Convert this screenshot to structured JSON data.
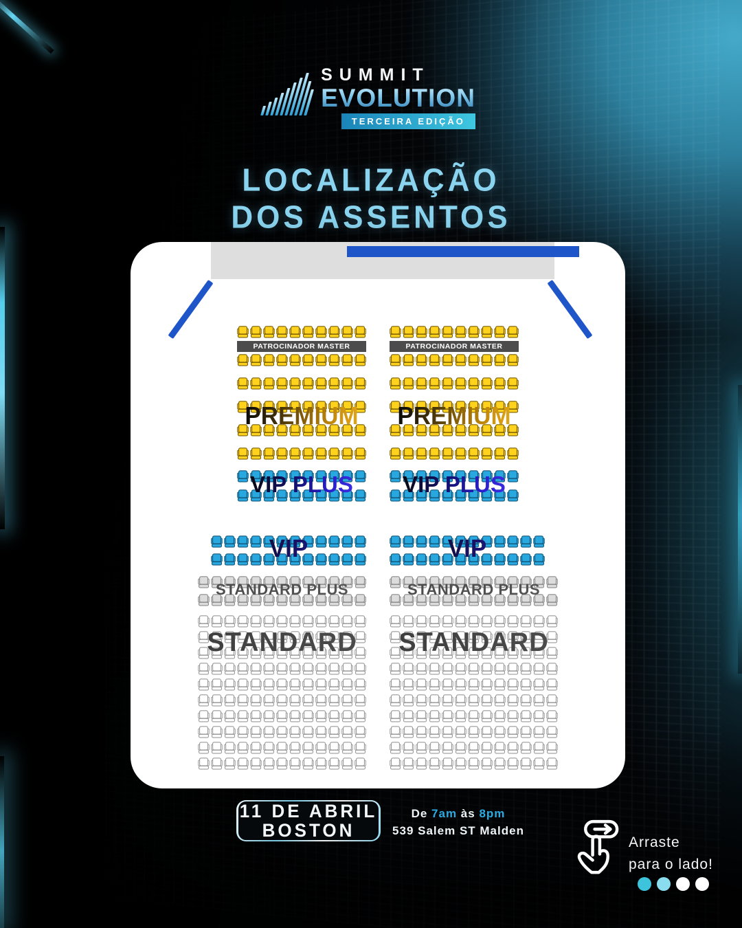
{
  "logo": {
    "summit": "SUMMIT",
    "evolution": "EVOLUTION",
    "badge": "TERCEIRA EDIÇÃO",
    "icon": "mountain-stripes-icon",
    "icon_bar_heights": [
      14,
      20,
      26,
      33,
      40,
      48,
      55,
      62,
      50,
      38
    ]
  },
  "title": {
    "line1": "LOCALIZAÇÃO",
    "line2": "DOS ASSENTOS"
  },
  "seat_map": {
    "banner": "PATROCINADOR MASTER",
    "labels": {
      "premium": "PREMIUM",
      "vip_plus": "VIP PLUS",
      "vip": "VIP",
      "standard_plus": "STANDARD PLUS",
      "standard": "STANDARD"
    },
    "seat_colors": {
      "yellow": {
        "fill": "#FFD21E",
        "stroke": "#7a5f04"
      },
      "blue": {
        "fill": "#29A8E0",
        "stroke": "#14597c"
      },
      "gray": {
        "fill": "#DCDCDC",
        "stroke": "#8c8c8c"
      },
      "white": {
        "fill": "#FFFFFF",
        "stroke": "#9a9a9a"
      }
    },
    "rows": [
      {
        "color": "yellow",
        "seats": 10,
        "mt": 0
      },
      {
        "banner": true,
        "mt": 3
      },
      {
        "color": "yellow",
        "seats": 10,
        "mt": 3
      },
      {
        "color": "yellow",
        "seats": 10,
        "mt": 15
      },
      {
        "color": "yellow",
        "seats": 10,
        "mt": 15
      },
      {
        "color": "yellow",
        "seats": 10,
        "mt": 15
      },
      {
        "color": "yellow",
        "seats": 10,
        "mt": 15
      },
      {
        "color": "blue",
        "seats": 10,
        "mt": 14
      },
      {
        "color": "blue",
        "seats": 10,
        "mt": 9
      },
      {
        "color": "blue",
        "seats": 12,
        "mt": 48
      },
      {
        "color": "blue",
        "seats": 12,
        "mt": 7
      },
      {
        "color": "gray",
        "seats": 13,
        "mt": 14
      },
      {
        "color": "gray",
        "seats": 13,
        "mt": 7
      },
      {
        "color": "white",
        "seats": 13,
        "mt": 12
      },
      {
        "color": "white",
        "seats": 13,
        "mt": 4
      },
      {
        "color": "white",
        "seats": 13,
        "mt": 4
      },
      {
        "color": "white",
        "seats": 13,
        "mt": 4
      },
      {
        "color": "white",
        "seats": 13,
        "mt": 4
      },
      {
        "color": "white",
        "seats": 13,
        "mt": 4
      },
      {
        "color": "white",
        "seats": 13,
        "mt": 4
      },
      {
        "color": "white",
        "seats": 13,
        "mt": 4
      },
      {
        "color": "white",
        "seats": 13,
        "mt": 4
      },
      {
        "color": "white",
        "seats": 13,
        "mt": 4
      }
    ],
    "stage_color": "#DEDEDE",
    "stage_bar_color": "#1E55C8"
  },
  "footer": {
    "date_line1": "11 DE ABRIL",
    "date_line2": "BOSTON",
    "time_prefix": "De",
    "time_start": "7am",
    "time_conj": "às",
    "time_end": "8pm",
    "address": "539 Salem ST Malden",
    "swipe_line1": "Arraste",
    "swipe_line2": "para o lado!",
    "dots": [
      "#3EC3DC",
      "#8ADDEE",
      "#FFFFFF",
      "#FFFFFF"
    ]
  },
  "colors": {
    "accent_cyan": "#8AD4EF",
    "accent_blue": "#2BABE2",
    "royal_blue": "#1E55C8",
    "teal_glow": "#48B2D4"
  }
}
